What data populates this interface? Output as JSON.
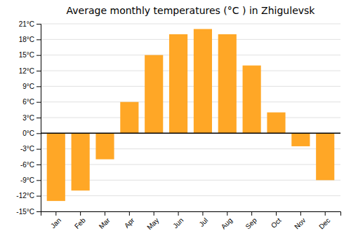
{
  "chart_data": {
    "type": "bar",
    "title": "Average monthly temperatures (°C ) in Zhigulevsk",
    "categories": [
      "Jan",
      "Feb",
      "Mar",
      "Apr",
      "May",
      "Jun",
      "Jul",
      "Aug",
      "Sep",
      "Oct",
      "Nov",
      "Dec"
    ],
    "values": [
      -13,
      -11,
      -5,
      6,
      15,
      19,
      20,
      19,
      13,
      4,
      -2.5,
      -9
    ],
    "color": "#FFA726",
    "ylim": [
      -15,
      21
    ],
    "yticks": [
      {
        "value": -15,
        "label": "-15°C"
      },
      {
        "value": -12,
        "label": "-12°C"
      },
      {
        "value": -9,
        "label": "-9°C"
      },
      {
        "value": -6,
        "label": "-6°C"
      },
      {
        "value": -3,
        "label": "-3°C"
      },
      {
        "value": 0,
        "label": "0°C"
      },
      {
        "value": 3,
        "label": "3°C"
      },
      {
        "value": 6,
        "label": "6°C"
      },
      {
        "value": 9,
        "label": "9°C"
      },
      {
        "value": 12,
        "label": "12°C"
      },
      {
        "value": 15,
        "label": "15°C"
      },
      {
        "value": 18,
        "label": "18°C"
      },
      {
        "value": 21,
        "label": "21°C"
      }
    ],
    "grid": true
  }
}
